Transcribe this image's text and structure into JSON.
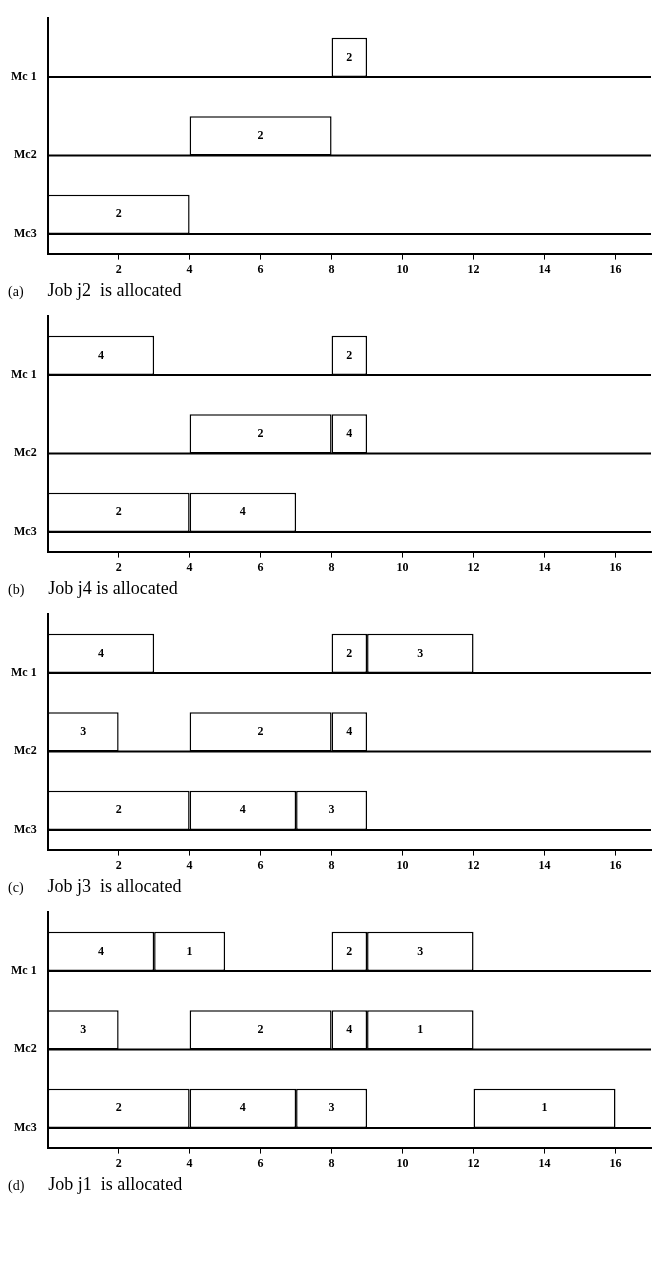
{
  "chart_data": [
    {
      "type": "bar",
      "orientation": "horizontal",
      "categories": [
        "Mc 1",
        "Mc2",
        "Mc3"
      ],
      "xlim": [
        0,
        17
      ],
      "xticks": [
        2,
        4,
        6,
        8,
        10,
        12,
        14,
        16
      ],
      "grid": "y",
      "annotations": [
        "(a)",
        "Job j2  is allocated",
        {
          "text": "2",
          "x": 8.5,
          "y": "Mc 1"
        },
        {
          "text": "2",
          "x": 6,
          "y": "Mc2"
        },
        {
          "text": "2",
          "x": 2,
          "y": "Mc3"
        }
      ],
      "series": [
        {
          "color": "#ffffff",
          "base": [
            8,
            4,
            0
          ],
          "values": [
            1,
            4,
            4
          ]
        }
      ]
    },
    {
      "type": "bar",
      "orientation": "horizontal",
      "categories": [
        "Mc 1",
        "Mc2",
        "Mc3"
      ],
      "xlim": [
        0,
        17
      ],
      "xticks": [
        2,
        4,
        6,
        8,
        10,
        12,
        14,
        16
      ],
      "grid": "y",
      "annotations": [
        "(b)",
        "Job j4 is allocated",
        {
          "text": "4",
          "x": 1.5,
          "y": "Mc 1"
        },
        {
          "text": "2",
          "x": 8.5,
          "y": "Mc 1"
        },
        {
          "text": "2",
          "x": 6,
          "y": "Mc2"
        },
        {
          "text": "4",
          "x": 8.5,
          "y": "Mc2"
        },
        {
          "text": "2",
          "x": 2,
          "y": "Mc3"
        },
        {
          "text": "4",
          "x": 5.5,
          "y": "Mc3"
        }
      ],
      "series": [
        {
          "color": "#ffffff",
          "base": [
            0,
            4,
            0
          ],
          "values": [
            3,
            4,
            4
          ]
        },
        {
          "color": "#ffffff",
          "base": [
            8,
            8,
            4
          ],
          "values": [
            1,
            1,
            3
          ]
        }
      ]
    },
    {
      "type": "bar",
      "orientation": "horizontal",
      "categories": [
        "Mc 1",
        "Mc2",
        "Mc3"
      ],
      "xlim": [
        0,
        17
      ],
      "xticks": [
        2,
        4,
        6,
        8,
        10,
        12,
        14,
        16
      ],
      "grid": "y",
      "annotations": [
        "(c)",
        "Job j3  is allocated",
        {
          "text": "4",
          "x": 1.5,
          "y": "Mc 1"
        },
        {
          "text": "2",
          "x": 8.5,
          "y": "Mc 1"
        },
        {
          "text": "3",
          "x": 10.5,
          "y": "Mc 1"
        },
        {
          "text": "3",
          "x": 1,
          "y": "Mc2"
        },
        {
          "text": "2",
          "x": 6,
          "y": "Mc2"
        },
        {
          "text": "4",
          "x": 8.5,
          "y": "Mc2"
        },
        {
          "text": "2",
          "x": 2,
          "y": "Mc3"
        },
        {
          "text": "4",
          "x": 5.5,
          "y": "Mc3"
        },
        {
          "text": "3",
          "x": 8,
          "y": "Mc3"
        }
      ],
      "series": [
        {
          "color": "#ffffff",
          "base": [
            0,
            0,
            0
          ],
          "values": [
            3,
            2,
            4
          ]
        },
        {
          "color": "#ffffff",
          "base": [
            8,
            4,
            4
          ],
          "values": [
            1,
            4,
            3
          ]
        },
        {
          "color": "#ffffff",
          "base": [
            9,
            8,
            7
          ],
          "values": [
            3,
            1,
            2
          ]
        }
      ]
    },
    {
      "type": "bar",
      "orientation": "horizontal",
      "categories": [
        "Mc 1",
        "Mc2",
        "Mc3"
      ],
      "xlim": [
        0,
        17
      ],
      "xticks": [
        2,
        4,
        6,
        8,
        10,
        12,
        14,
        16
      ],
      "grid": "y",
      "annotations": [
        "(d)",
        "Job j1  is allocated",
        {
          "text": "4",
          "x": 1.5,
          "y": "Mc 1"
        },
        {
          "text": "1",
          "x": 4,
          "y": "Mc 1"
        },
        {
          "text": "2",
          "x": 8.5,
          "y": "Mc 1"
        },
        {
          "text": "3",
          "x": 10.5,
          "y": "Mc 1"
        },
        {
          "text": "3",
          "x": 1,
          "y": "Mc2"
        },
        {
          "text": "2",
          "x": 6,
          "y": "Mc2"
        },
        {
          "text": "4",
          "x": 8.5,
          "y": "Mc2"
        },
        {
          "text": "1",
          "x": 10.5,
          "y": "Mc2"
        },
        {
          "text": "2",
          "x": 2,
          "y": "Mc3"
        },
        {
          "text": "4",
          "x": 5.5,
          "y": "Mc3"
        },
        {
          "text": "3",
          "x": 8,
          "y": "Mc3"
        },
        {
          "text": "1",
          "x": 14,
          "y": "Mc3"
        }
      ],
      "series": [
        {
          "color": "#ffffff",
          "base": [
            0,
            0,
            0
          ],
          "values": [
            3,
            2,
            4
          ]
        },
        {
          "color": "#ffffff",
          "base": [
            3,
            4,
            4
          ],
          "values": [
            2,
            4,
            3
          ]
        },
        {
          "color": "#ffffff",
          "base": [
            8,
            8,
            7
          ],
          "values": [
            1,
            1,
            2
          ]
        },
        {
          "color": "#ffffff",
          "base": [
            9,
            9,
            12
          ],
          "values": [
            3,
            3,
            4
          ]
        }
      ]
    }
  ]
}
